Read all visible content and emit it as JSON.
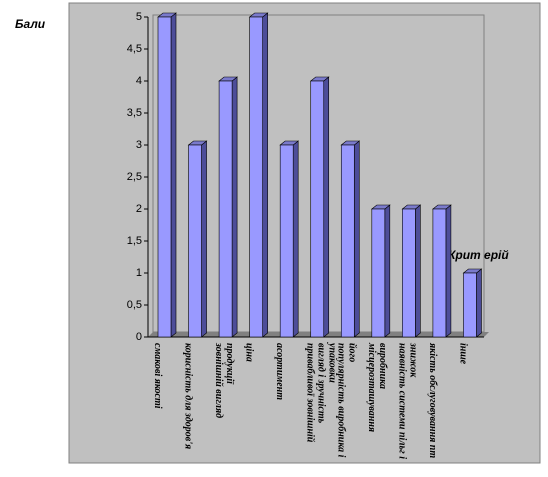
{
  "chart_data": {
    "type": "bar3d",
    "y_label": "Бали",
    "x_label": "Крит ерій",
    "categories": [
      "смакові якості",
      "корисність для здоров'я",
      "зовнішній вигляд продукції",
      "ціна",
      "асортимент",
      "привабливої зовнішній вигляд і зручність упаковки",
      "популярність виробника і його",
      "місцерозташування виробника",
      "наявність системи пільг і знижок",
      "якість обслуговування пт",
      "інше"
    ],
    "values": [
      5,
      3,
      4,
      5,
      3,
      4,
      3,
      2,
      2,
      2,
      1
    ],
    "color": "#9999ff",
    "ylim": [
      0,
      5
    ],
    "yticks": [
      0,
      {
        "value": 0.5,
        "label": "0,5"
      },
      1,
      {
        "value": 1.5,
        "label": "1,5"
      },
      2,
      {
        "value": 2.5,
        "label": "2,5"
      },
      3,
      {
        "value": 3.5,
        "label": "3,5"
      },
      4,
      {
        "value": 4.5,
        "label": "4,5"
      },
      5
    ]
  }
}
